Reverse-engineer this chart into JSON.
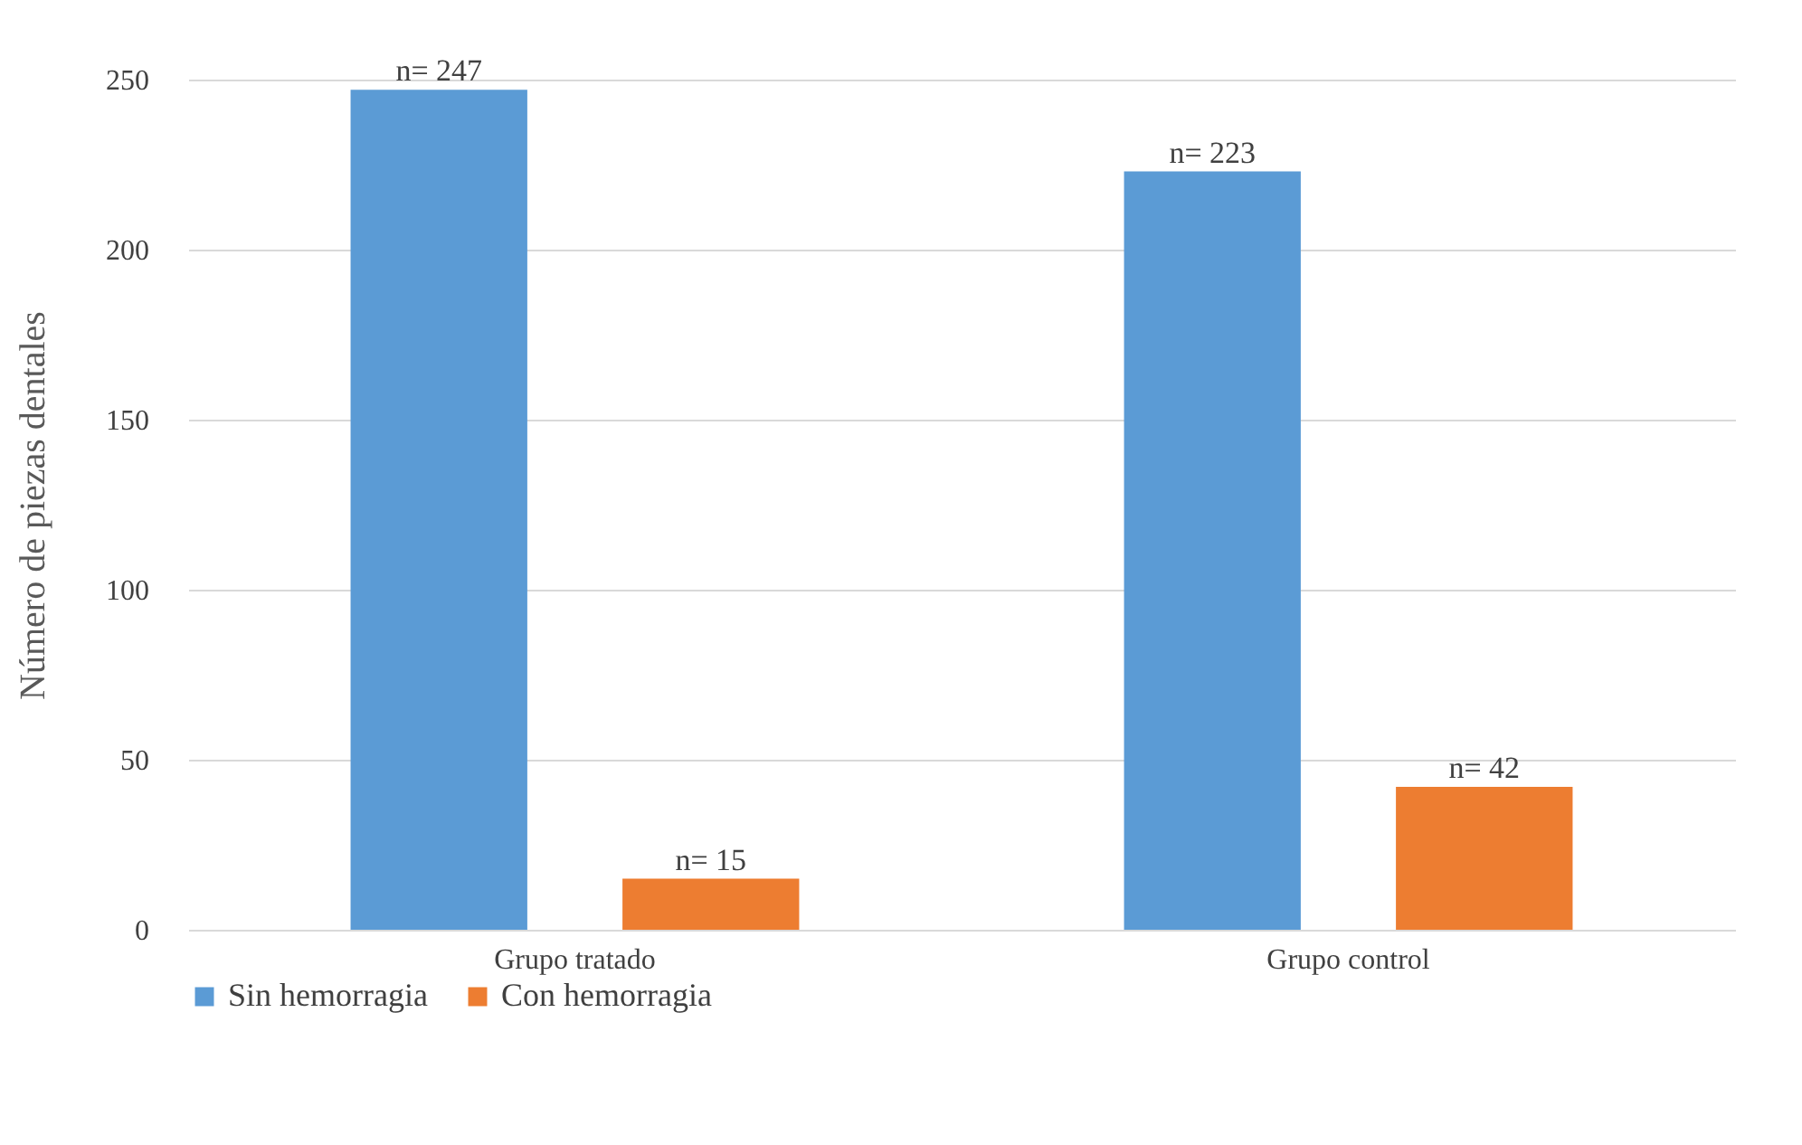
{
  "chart_data": {
    "type": "bar",
    "ylabel": "Número de piezas dentales",
    "categories": [
      "Grupo tratado",
      "Grupo control"
    ],
    "series": [
      {
        "name": "Sin hemorragia",
        "color": "#5b9bd5",
        "values": [
          247,
          223
        ],
        "value_labels": [
          "n= 247",
          "n= 223"
        ]
      },
      {
        "name": "Con hemorragia",
        "color": "#ed7d31",
        "values": [
          15,
          42
        ],
        "value_labels": [
          "n= 15",
          "n= 42"
        ]
      }
    ],
    "ylim": [
      0,
      250
    ],
    "yticks": [
      0,
      50,
      100,
      150,
      200,
      250
    ],
    "grid": "y",
    "legend": "bottom"
  }
}
